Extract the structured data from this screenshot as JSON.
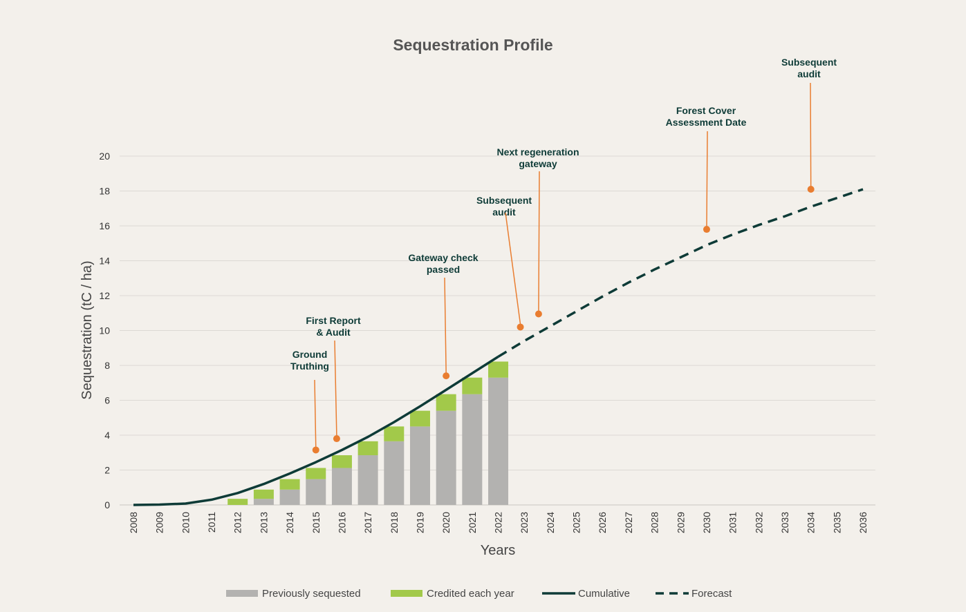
{
  "chart_data": {
    "type": "bar",
    "title": "Sequestration Profile",
    "xlabel": "Years",
    "ylabel": "Sequestration (tC / ha)",
    "ylim": [
      0,
      20
    ],
    "yticks": [
      0,
      2,
      4,
      6,
      8,
      10,
      12,
      14,
      16,
      18,
      20
    ],
    "grid": true,
    "legend_position": "bottom",
    "categories": [
      "2008",
      "2009",
      "2010",
      "2011",
      "2012",
      "2013",
      "2014",
      "2015",
      "2016",
      "2017",
      "2018",
      "2019",
      "2020",
      "2021",
      "2022",
      "2023",
      "2024",
      "2025",
      "2026",
      "2027",
      "2028",
      "2029",
      "2030",
      "2031",
      "2032",
      "2033",
      "2034",
      "2035",
      "2036"
    ],
    "series": [
      {
        "name": "Previously sequested",
        "type": "bar",
        "stack": "total",
        "color": "#b3b2b0",
        "values": [
          null,
          null,
          null,
          null,
          0,
          0.35,
          0.88,
          1.48,
          2.12,
          2.85,
          3.65,
          4.5,
          5.4,
          6.35,
          7.3,
          null,
          null,
          null,
          null,
          null,
          null,
          null,
          null,
          null,
          null,
          null,
          null,
          null,
          null
        ]
      },
      {
        "name": "Credited each year",
        "type": "bar",
        "stack": "total",
        "color": "#a2c94a",
        "values": [
          null,
          null,
          null,
          null,
          0.35,
          0.53,
          0.6,
          0.64,
          0.73,
          0.8,
          0.85,
          0.9,
          0.95,
          0.95,
          0.92,
          null,
          null,
          null,
          null,
          null,
          null,
          null,
          null,
          null,
          null,
          null,
          null,
          null,
          null
        ]
      },
      {
        "name": "Cumulative",
        "type": "line",
        "color": "#0e3b37",
        "values": [
          0,
          0.02,
          0.08,
          0.3,
          0.68,
          1.2,
          1.8,
          2.45,
          3.15,
          3.9,
          4.75,
          5.65,
          6.6,
          7.55,
          8.5,
          null,
          null,
          null,
          null,
          null,
          null,
          null,
          null,
          null,
          null,
          null,
          null,
          null,
          null
        ]
      },
      {
        "name": "Forecast",
        "type": "line",
        "dashed": true,
        "color": "#0e3b37",
        "values": [
          null,
          null,
          null,
          null,
          null,
          null,
          null,
          null,
          null,
          null,
          null,
          null,
          null,
          null,
          8.5,
          9.4,
          10.25,
          11.1,
          11.95,
          12.75,
          13.5,
          14.2,
          14.9,
          15.5,
          16.05,
          16.55,
          17.1,
          17.6,
          18.1
        ]
      }
    ],
    "annotations": [
      {
        "lines": [
          "Ground",
          "Truthing"
        ],
        "x": 2015,
        "y": 3.15,
        "color": "#e97d30"
      },
      {
        "lines": [
          "First Report",
          "& Audit"
        ],
        "x": 2015.8,
        "y": 3.8,
        "color": "#e97d30"
      },
      {
        "lines": [
          "Gateway check",
          "passed"
        ],
        "x": 2020,
        "y": 7.4,
        "color": "#e97d30"
      },
      {
        "lines": [
          "Subsequent",
          "audit"
        ],
        "x": 2022.85,
        "y": 10.2,
        "color": "#e97d30"
      },
      {
        "lines": [
          "Next regeneration",
          "gateway"
        ],
        "x": 2023.55,
        "y": 10.95,
        "color": "#e97d30"
      },
      {
        "lines": [
          "Forest Cover",
          "Assessment Date"
        ],
        "x": 2030,
        "y": 15.8,
        "color": "#e97d30"
      },
      {
        "lines": [
          "Subsequent",
          "audit"
        ],
        "x": 2034,
        "y": 18.1,
        "color": "#e97d30"
      }
    ]
  }
}
